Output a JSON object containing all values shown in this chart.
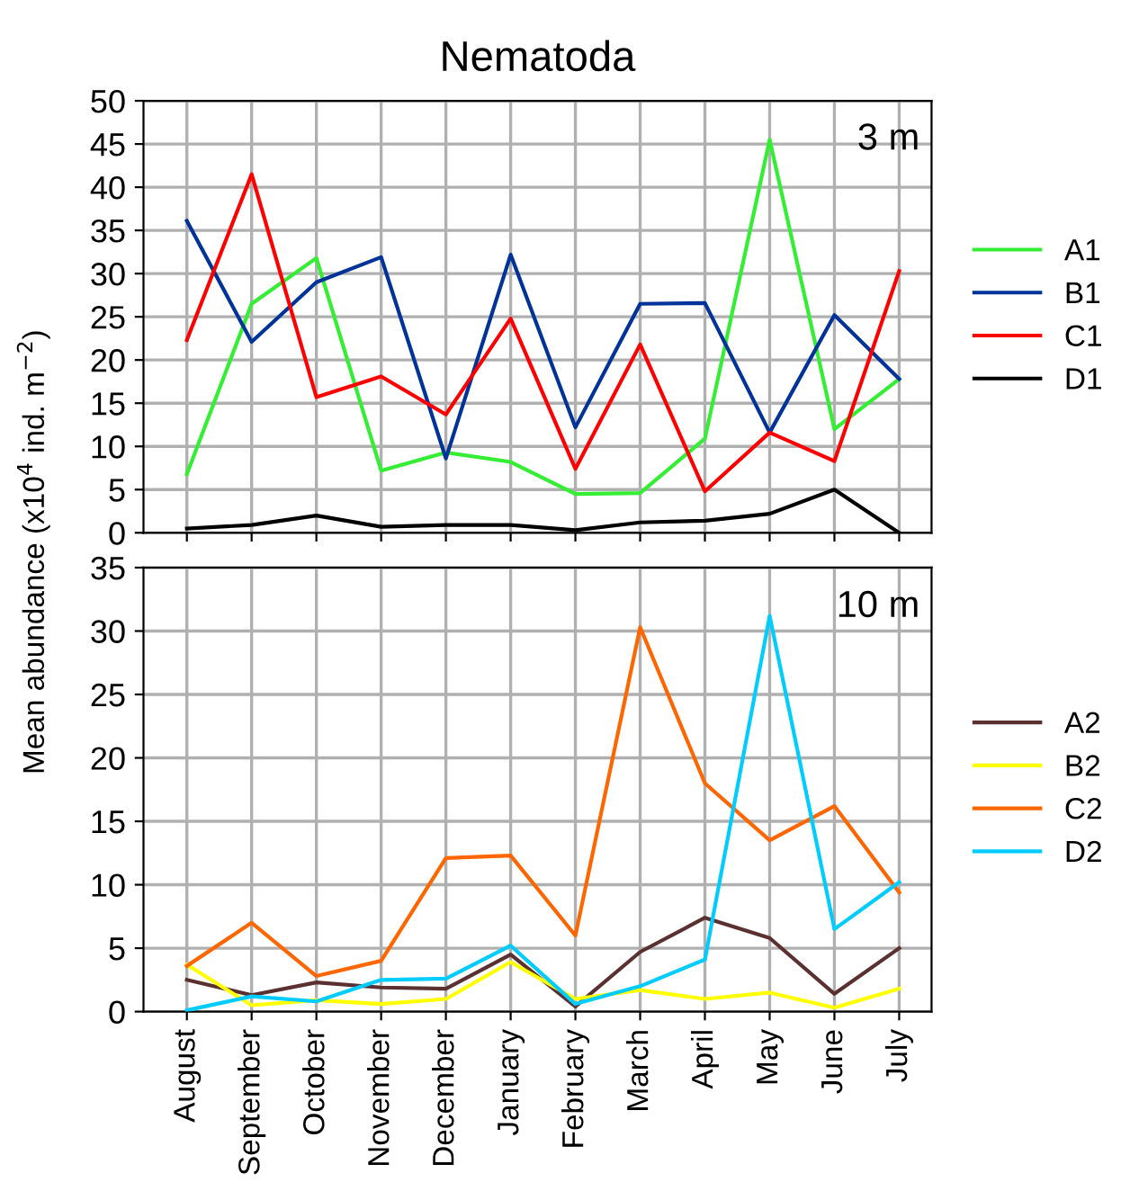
{
  "chart_data": [
    {
      "type": "line",
      "title": "Nematoda",
      "ylabel": "Mean abundance (x10$^{4}$ ind. m$^{−2}$)",
      "annotations": [
        "3 m"
      ],
      "tick_labels": "y",
      "grid": true,
      "legend": "right",
      "ylim": [
        0,
        50
      ],
      "yticks": [
        0,
        5,
        10,
        15,
        20,
        25,
        30,
        35,
        40,
        45,
        50
      ],
      "categories": [
        null,
        null,
        null,
        null,
        null,
        null,
        null,
        null,
        null,
        null,
        null,
        null
      ],
      "series": [
        {
          "name": "A1",
          "color": "#33ee33",
          "values": [
            6.8,
            26.5,
            31.8,
            7.2,
            9.3,
            8.2,
            4.5,
            4.6,
            10.9,
            45.5,
            12.0,
            17.8
          ]
        },
        {
          "name": "B1",
          "color": "#003399",
          "values": [
            36.1,
            22.1,
            29.0,
            31.9,
            8.6,
            32.2,
            12.2,
            26.5,
            26.6,
            11.6,
            25.2,
            17.8
          ]
        },
        {
          "name": "C1",
          "color": "#ff0000",
          "values": [
            22.3,
            41.5,
            15.7,
            18.1,
            13.7,
            24.8,
            7.4,
            21.8,
            4.8,
            11.6,
            8.3,
            30.3
          ]
        },
        {
          "name": "D1",
          "color": "#000000",
          "values": [
            0.5,
            0.9,
            2.0,
            0.7,
            0.9,
            0.9,
            0.3,
            1.2,
            1.4,
            2.2,
            5.0,
            0.0
          ]
        }
      ]
    },
    {
      "type": "line",
      "annotations": [
        "10 m"
      ],
      "grid": true,
      "legend": "right",
      "ylim": [
        0,
        35
      ],
      "yticks": [
        0,
        5,
        10,
        15,
        20,
        25,
        30,
        35
      ],
      "categories": [
        "August",
        "September",
        "October",
        "November",
        "December",
        "January",
        "February",
        "March",
        "April",
        "May",
        "June",
        "July"
      ],
      "series": [
        {
          "name": "A2",
          "color": "#5a3030",
          "values": [
            2.5,
            1.3,
            2.3,
            1.9,
            1.8,
            4.5,
            0.4,
            4.7,
            7.4,
            5.8,
            1.4,
            5.0
          ]
        },
        {
          "name": "B2",
          "color": "#ffff00",
          "values": [
            3.7,
            0.5,
            0.9,
            0.6,
            1.0,
            3.9,
            1.0,
            1.7,
            1.0,
            1.5,
            0.3,
            1.8
          ]
        },
        {
          "name": "C2",
          "color": "#ff6600",
          "values": [
            3.6,
            7.0,
            2.8,
            4.0,
            12.1,
            12.3,
            6.0,
            30.3,
            18.0,
            13.5,
            16.2,
            9.4
          ]
        },
        {
          "name": "D2",
          "color": "#00ccff",
          "values": [
            0.1,
            1.2,
            0.8,
            2.5,
            2.6,
            5.2,
            0.6,
            2.0,
            4.1,
            31.2,
            6.5,
            10.2
          ]
        }
      ]
    }
  ]
}
